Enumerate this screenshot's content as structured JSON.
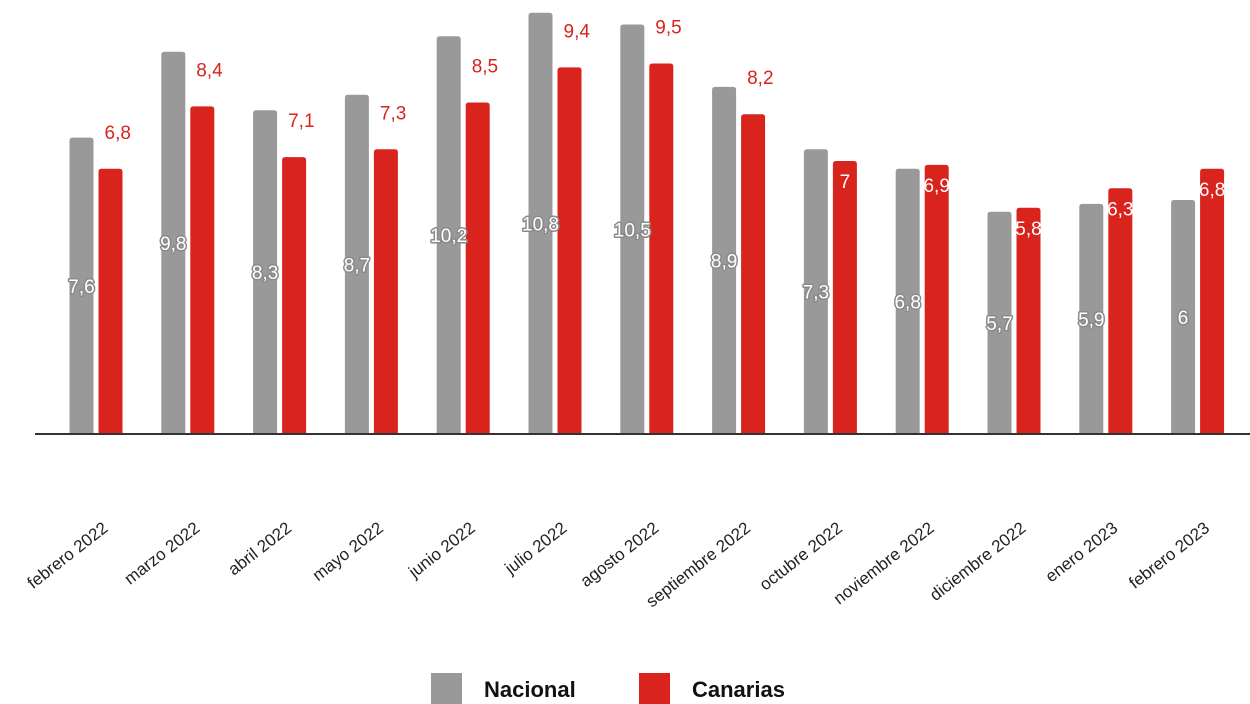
{
  "chart_data": {
    "type": "bar",
    "title": "",
    "xlabel": "",
    "ylabel": "",
    "categories": [
      "febrero 2022",
      "marzo 2022",
      "abril 2022",
      "mayo 2022",
      "junio 2022",
      "julio 2022",
      "agosto 2022",
      "septiembre 2022",
      "octubre 2022",
      "noviembre 2022",
      "diciembre 2022",
      "enero 2023",
      "febrero 2023"
    ],
    "series": [
      {
        "name": "Nacional",
        "color": "#999999",
        "values": [
          7.6,
          9.8,
          8.3,
          8.7,
          10.2,
          10.8,
          10.5,
          8.9,
          7.3,
          6.8,
          5.7,
          5.9,
          6
        ],
        "labels": [
          "7,6",
          "9,8",
          "8,3",
          "8,7",
          "10,2",
          "10,8",
          "10,5",
          "8,9",
          "7,3",
          "6,8",
          "5,7",
          "5,9",
          "6"
        ]
      },
      {
        "name": "Canarias",
        "color": "#d9231d",
        "values": [
          6.8,
          8.4,
          7.1,
          7.3,
          8.5,
          9.4,
          9.5,
          8.2,
          7,
          6.9,
          5.8,
          6.3,
          6.8
        ],
        "labels": [
          "6,8",
          "8,4",
          "7,1",
          "7,3",
          "8,5",
          "9,4",
          "9,5",
          "8,2",
          "7",
          "6,9",
          "5,8",
          "6,3",
          "6,8"
        ]
      }
    ],
    "ylim": [
      0,
      11
    ],
    "grid": false,
    "legend": "bottom-center"
  }
}
